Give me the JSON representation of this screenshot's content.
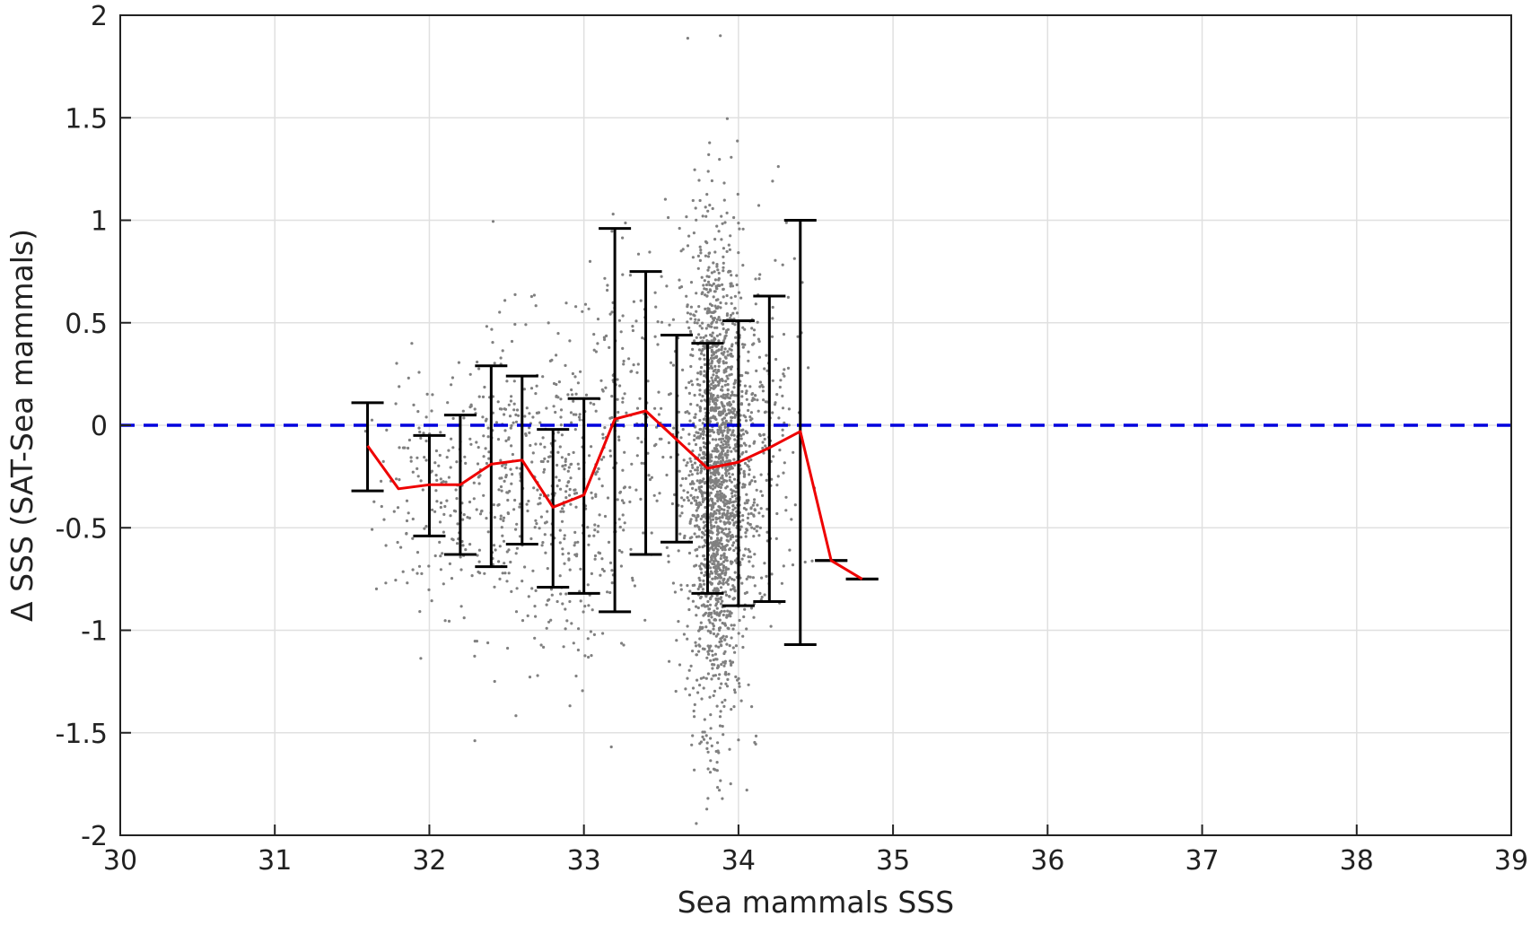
{
  "chart_data": {
    "type": "scatter",
    "title": "",
    "xlabel": "Sea mammals SSS",
    "ylabel": "Δ SSS (SAT-Sea mammals)",
    "xlim": [
      30,
      39
    ],
    "ylim": [
      -2,
      2
    ],
    "x_ticks": [
      "30",
      "31",
      "32",
      "33",
      "34",
      "35",
      "36",
      "37",
      "38",
      "39"
    ],
    "y_ticks": [
      "-2",
      "-1.5",
      "-1",
      "-0.5",
      "0",
      "0.5",
      "1",
      "1.5",
      "2"
    ],
    "grid": true,
    "reference_line": {
      "y": 0,
      "style": "dashed",
      "color": "#0000dd"
    },
    "colors": {
      "scatter": "#808080",
      "mean_line": "#ee0000",
      "error_bars": "#000000",
      "grid": "#e0e0e0",
      "axes": "#222222"
    },
    "scatter_clusters": [
      {
        "x_center": 32.0,
        "x_spread": 0.18,
        "y_center": -0.35,
        "y_spread": 0.3,
        "count": 140
      },
      {
        "x_center": 32.5,
        "x_spread": 0.2,
        "y_center": -0.25,
        "y_spread": 0.38,
        "count": 260
      },
      {
        "x_center": 32.9,
        "x_spread": 0.15,
        "y_center": -0.4,
        "y_spread": 0.4,
        "count": 220
      },
      {
        "x_center": 33.2,
        "x_spread": 0.12,
        "y_center": 0.0,
        "y_spread": 0.55,
        "count": 130
      },
      {
        "x_center": 33.45,
        "x_spread": 0.12,
        "y_center": 0.05,
        "y_spread": 0.45,
        "count": 90
      },
      {
        "x_center": 33.85,
        "x_spread": 0.09,
        "y_center": -0.25,
        "y_spread": 0.6,
        "count": 1700
      },
      {
        "x_center": 34.05,
        "x_spread": 0.1,
        "y_center": -0.15,
        "y_spread": 0.45,
        "count": 260
      },
      {
        "x_center": 34.3,
        "x_spread": 0.12,
        "y_center": -0.05,
        "y_spread": 0.5,
        "count": 60
      }
    ],
    "series": [
      {
        "name": "",
        "x": [
          31.6,
          31.8,
          32.0,
          32.2,
          32.4,
          32.6,
          32.8,
          33.0,
          33.2,
          33.4,
          33.6,
          33.8,
          34.0,
          34.2,
          34.4,
          34.6,
          34.8
        ],
        "y": [
          -0.1,
          -0.31,
          -0.29,
          -0.29,
          -0.19,
          -0.17,
          -0.4,
          -0.34,
          0.03,
          0.07,
          -0.07,
          -0.21,
          -0.18,
          -0.11,
          -0.03,
          -0.66,
          -0.75
        ],
        "lower": [
          -0.32,
          null,
          -0.54,
          -0.63,
          -0.69,
          -0.58,
          -0.79,
          -0.82,
          -0.91,
          -0.63,
          -0.57,
          -0.82,
          -0.88,
          -0.86,
          -1.07,
          -0.66,
          -0.75
        ],
        "upper": [
          0.11,
          null,
          -0.05,
          0.05,
          0.29,
          0.24,
          -0.02,
          0.13,
          0.96,
          0.75,
          0.44,
          0.4,
          0.51,
          0.63,
          1.0,
          -0.66,
          -0.75
        ]
      }
    ]
  }
}
